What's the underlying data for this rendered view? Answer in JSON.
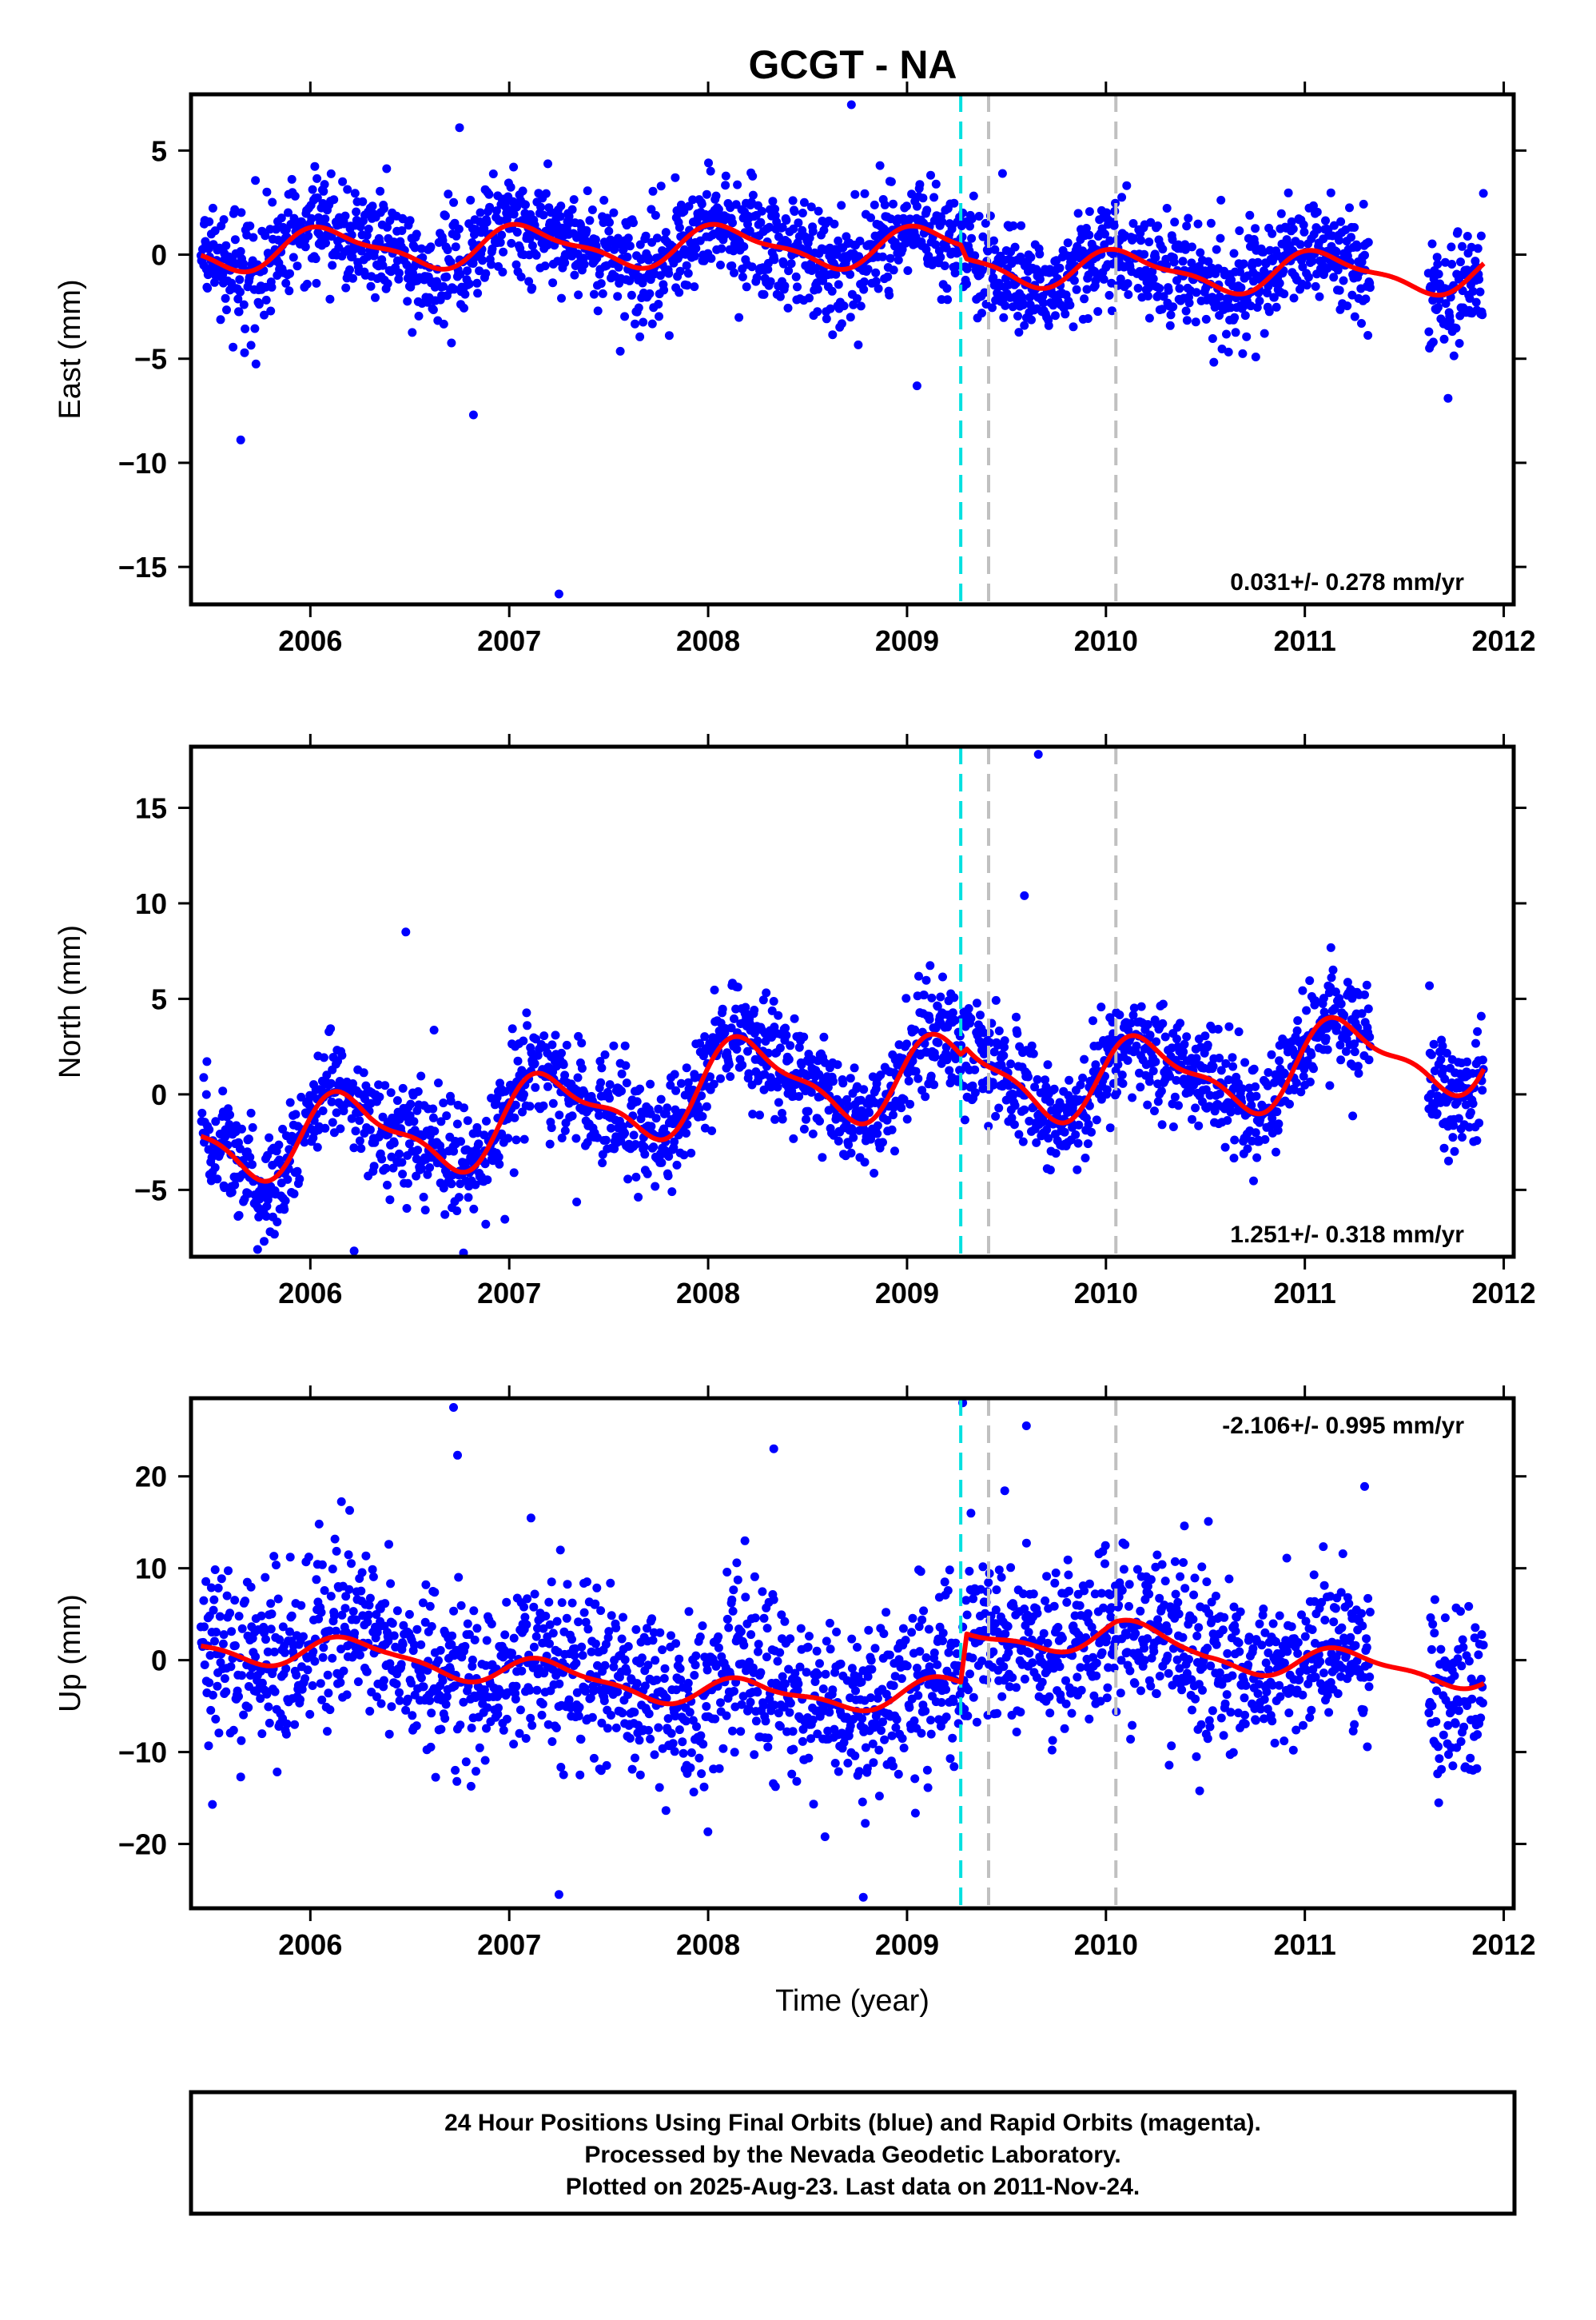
{
  "title": "GCGT - NA",
  "footer": {
    "line1": "24 Hour Positions Using Final Orbits (blue) and Rapid Orbits (magenta).",
    "line2": "Processed by the Nevada Geodetic Laboratory.",
    "line3": "Plotted on 2025-Aug-23. Last data on 2011-Nov-24."
  },
  "colors": {
    "points": "#0000ff",
    "model": "#ff0000",
    "equipment_change": "#00e0e0",
    "other_event": "#c0c0c0"
  },
  "chart_data": [
    {
      "type": "scatter",
      "component": "east",
      "ylabel": "East (mm)",
      "xlabel": "",
      "xlim": [
        2005.4,
        2012.05
      ],
      "ylim": [
        -16.8,
        7.7
      ],
      "x_ticks": [
        2006,
        2007,
        2008,
        2009,
        2010,
        2011,
        2012
      ],
      "y_ticks": [
        5,
        0,
        -5,
        -10,
        -15
      ],
      "y_tick_labels": [
        "5",
        "0",
        "−5",
        "−10",
        "−15"
      ],
      "rate_label": "0.031+/- 0.278 mm/yr",
      "rate_label_position": "bottom-right",
      "vlines": [
        {
          "x": 2009.27,
          "style": "cyan-dashed"
        },
        {
          "x": 2009.41,
          "style": "gray-dashed"
        },
        {
          "x": 2010.05,
          "style": "gray-dashed"
        }
      ],
      "data_range": [
        2005.45,
        2011.9
      ],
      "data_gap": [
        2011.33,
        2011.62
      ],
      "scatter_sigma": 1.3,
      "model": {
        "offset_knots": [
          [
            2005.45,
            0.2
          ],
          [
            2007.0,
            0.4
          ],
          [
            2008.0,
            0.4
          ],
          [
            2009.27,
            0.3
          ],
          [
            2009.3,
            -0.3
          ],
          [
            2010.0,
            -0.8
          ],
          [
            2011.9,
            -0.9
          ]
        ],
        "seasonal_amplitude": 0.9,
        "seasonal_phase": 0.95
      },
      "outliers": [
        [
          2005.65,
          -8.9
        ],
        [
          2006.82,
          -7.7
        ],
        [
          2007.25,
          -16.3
        ],
        [
          2008.72,
          7.2
        ],
        [
          2009.05,
          -6.3
        ],
        [
          2011.72,
          -6.9
        ],
        [
          2006.75,
          6.1
        ]
      ]
    },
    {
      "type": "scatter",
      "component": "north",
      "ylabel": "North (mm)",
      "xlabel": "",
      "xlim": [
        2005.4,
        2012.05
      ],
      "ylim": [
        -8.5,
        18.2
      ],
      "x_ticks": [
        2006,
        2007,
        2008,
        2009,
        2010,
        2011,
        2012
      ],
      "y_ticks": [
        15,
        10,
        5,
        0,
        -5
      ],
      "y_tick_labels": [
        "15",
        "10",
        "5",
        "0",
        "−5"
      ],
      "rate_label": "1.251+/- 0.318 mm/yr",
      "rate_label_position": "bottom-right",
      "vlines": [
        {
          "x": 2009.27,
          "style": "cyan-dashed"
        },
        {
          "x": 2009.41,
          "style": "gray-dashed"
        },
        {
          "x": 2010.05,
          "style": "gray-dashed"
        }
      ],
      "data_range": [
        2005.45,
        2011.9
      ],
      "data_gap": [
        2011.33,
        2011.62
      ],
      "scatter_sigma": 1.4,
      "model": {
        "offset_knots": [
          [
            2005.45,
            -2.2
          ],
          [
            2006.3,
            -2.2
          ],
          [
            2007.0,
            -1.5
          ],
          [
            2008.2,
            0.8
          ],
          [
            2009.27,
            0.8
          ],
          [
            2009.3,
            1.4
          ],
          [
            2010.0,
            0.6
          ],
          [
            2011.9,
            2.4
          ]
        ],
        "seasonal_amplitude": 2.0,
        "seasonal_phase": 0.3
      },
      "outliers": [
        [
          2009.66,
          17.8
        ],
        [
          2009.59,
          10.4
        ],
        [
          2006.48,
          8.5
        ],
        [
          2006.77,
          -8.3
        ],
        [
          2006.22,
          -8.2
        ]
      ]
    },
    {
      "type": "scatter",
      "component": "up",
      "ylabel": "Up (mm)",
      "xlabel": "Time (year)",
      "xlim": [
        2005.4,
        2012.05
      ],
      "ylim": [
        -27,
        28.5
      ],
      "x_ticks": [
        2006,
        2007,
        2008,
        2009,
        2010,
        2011,
        2012
      ],
      "y_ticks": [
        20,
        10,
        0,
        -10,
        -20
      ],
      "y_tick_labels": [
        "20",
        "10",
        "0",
        "−10",
        "−20"
      ],
      "rate_label": "-2.106+/- 0.995 mm/yr",
      "rate_label_position": "top-right",
      "vlines": [
        {
          "x": 2009.27,
          "style": "cyan-dashed"
        },
        {
          "x": 2009.41,
          "style": "gray-dashed"
        },
        {
          "x": 2010.05,
          "style": "gray-dashed"
        }
      ],
      "data_range": [
        2005.45,
        2011.9
      ],
      "data_gap": [
        2011.33,
        2011.62
      ],
      "scatter_sigma": 4.8,
      "model": {
        "offset_knots": [
          [
            2005.45,
            1.5
          ],
          [
            2006.4,
            0.5
          ],
          [
            2007.3,
            -2.0
          ],
          [
            2008.3,
            -4.0
          ],
          [
            2009.27,
            -3.5
          ],
          [
            2009.3,
            2.0
          ],
          [
            2010.05,
            3.0
          ],
          [
            2010.5,
            0.5
          ],
          [
            2011.9,
            -1.5
          ]
        ],
        "seasonal_amplitude": 1.5,
        "seasonal_phase": 0.2
      },
      "outliers": [
        [
          2006.72,
          27.5
        ],
        [
          2009.28,
          28.0
        ],
        [
          2007.25,
          -25.5
        ],
        [
          2008.78,
          -25.8
        ],
        [
          2009.6,
          25.5
        ],
        [
          2008.33,
          23.0
        ],
        [
          2006.74,
          22.3
        ]
      ]
    }
  ]
}
